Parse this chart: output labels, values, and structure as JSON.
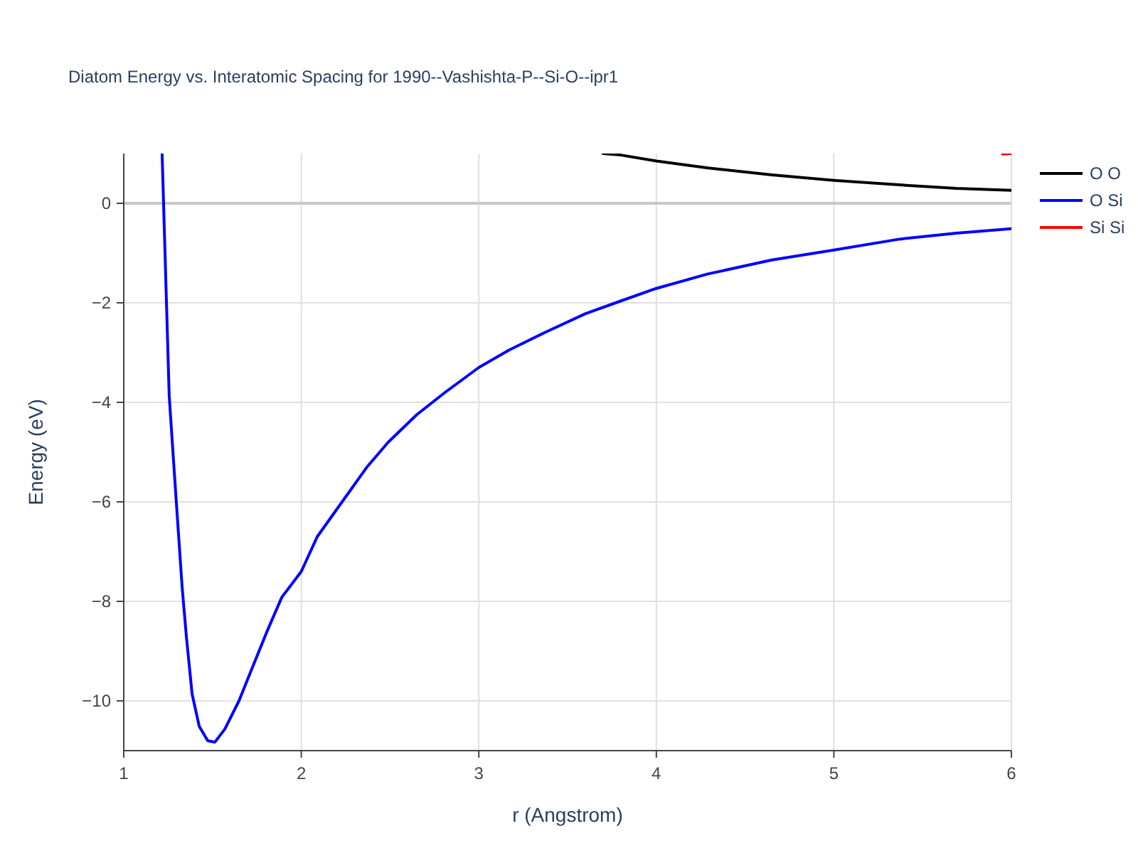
{
  "chart_data": {
    "type": "line",
    "title": "Diatom Energy vs. Interatomic Spacing for 1990--Vashishta-P--Si-O--ipr1",
    "xlabel": "r (Angstrom)",
    "ylabel": "Energy (eV)",
    "xlim": [
      1,
      6
    ],
    "ylim": [
      -11,
      1
    ],
    "xticks": [
      1,
      2,
      3,
      4,
      5,
      6
    ],
    "yticks": [
      {
        "value": -10,
        "label": "−10"
      },
      {
        "value": -8,
        "label": "−8"
      },
      {
        "value": -6,
        "label": "−6"
      },
      {
        "value": -4,
        "label": "−4"
      },
      {
        "value": -2,
        "label": "−2"
      },
      0
    ],
    "grid": true,
    "legend": "top right",
    "line_style": "solid",
    "marker": "none",
    "ref_lines": [
      {
        "axis": "y",
        "value": 0,
        "color": "#c8c8c8"
      }
    ],
    "series": [
      {
        "name": "O O",
        "color": "#000000",
        "x": [
          3.7,
          3.8,
          4.0,
          4.29,
          4.65,
          5.0,
          5.37,
          5.69,
          6.0
        ],
        "values": [
          1.0,
          0.97,
          0.85,
          0.71,
          0.57,
          0.46,
          0.37,
          0.3,
          0.26
        ]
      },
      {
        "name": "O Si",
        "color": "#0000ff",
        "x": [
          1.216,
          1.256,
          1.288,
          1.329,
          1.353,
          1.385,
          1.425,
          1.473,
          1.513,
          1.569,
          1.649,
          1.729,
          1.81,
          1.89,
          2.0,
          2.09,
          2.23,
          2.37,
          2.49,
          2.65,
          2.81,
          3.0,
          3.17,
          3.37,
          3.6,
          3.81,
          4.0,
          4.29,
          4.65,
          5.0,
          5.37,
          5.69,
          6.0
        ],
        "values": [
          1.0,
          -3.87,
          -5.58,
          -7.72,
          -8.72,
          -9.86,
          -10.51,
          -10.8,
          -10.83,
          -10.57,
          -10.0,
          -9.29,
          -8.58,
          -7.92,
          -7.4,
          -6.7,
          -6.0,
          -5.3,
          -4.8,
          -4.25,
          -3.8,
          -3.3,
          -2.95,
          -2.6,
          -2.22,
          -1.95,
          -1.71,
          -1.42,
          -1.14,
          -0.94,
          -0.72,
          -0.6,
          -0.51
        ]
      },
      {
        "name": "Si Si",
        "color": "#ff0000",
        "x": [
          5.95,
          6.0
        ],
        "values": [
          0.99,
          1.0
        ]
      }
    ]
  }
}
